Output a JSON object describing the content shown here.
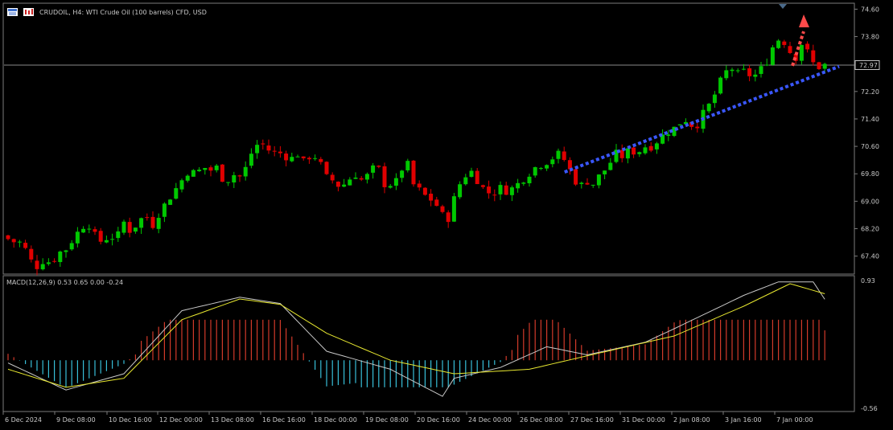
{
  "header": {
    "symbol": "CRUDOIL",
    "timeframe": "H4",
    "title_text": "CRUDOIL, H4:  WTI Crude Oil (100 barrels) CFD, USD"
  },
  "colors": {
    "background": "#000000",
    "bull": "#00c800",
    "bear": "#e00000",
    "grid_border": "#7c7c7c",
    "trendline": "#3a57ff",
    "arrow": "#ff4a4a",
    "macd_line": "#c8c8c8",
    "signal_line": "#e8e830",
    "hist_pos": "#d23a2a",
    "hist_neg": "#38bfd8"
  },
  "chart_data": [
    {
      "type": "candlestick",
      "ylim": [
        66.9,
        74.75
      ],
      "price_ticks": [
        "74.60",
        "73.80",
        "73.00",
        "72.20",
        "71.40",
        "70.60",
        "69.80",
        "69.00",
        "68.20",
        "67.40"
      ],
      "current_price": "72.97",
      "current_price_value": 72.97,
      "x_labels": [
        "6 Dec 2024",
        "9 Dec 08:00",
        "10 Dec 16:00",
        "12 Dec 00:00",
        "13 Dec 08:00",
        "16 Dec 16:00",
        "18 Dec 00:00",
        "19 Dec 08:00",
        "20 Dec 16:00",
        "24 Dec 00:00",
        "26 Dec 08:00",
        "27 Dec 16:00",
        "31 Dec 00:00",
        "2 Jan 08:00",
        "3 Jan 16:00",
        "7 Jan 00:00"
      ],
      "closes": [
        67.9,
        67.8,
        67.8,
        67.3,
        67.1,
        67.3,
        67.2,
        67.5,
        67.6,
        67.9,
        68.2,
        68.4,
        68.0,
        67.8,
        68.0,
        67.9,
        68.4,
        68.1,
        68.4,
        68.6,
        68.3,
        68.7,
        69.0,
        69.3,
        69.6,
        69.9,
        69.8,
        70.0,
        69.9,
        70.0,
        69.5,
        69.8,
        69.7,
        70.0,
        70.6,
        70.7,
        70.5,
        70.4,
        70.4,
        70.2,
        70.4,
        70.1,
        70.4,
        70.2,
        69.7,
        69.6,
        69.4,
        69.6,
        69.8,
        69.6,
        69.8,
        70.1,
        69.5,
        69.5,
        69.6,
        70.3,
        69.5,
        69.3,
        69.1,
        69.0,
        68.6,
        68.5,
        69.3,
        69.7,
        69.9,
        69.6,
        69.3,
        69.2,
        69.4,
        69.3,
        69.4,
        69.6,
        69.8,
        70.0,
        70.1,
        70.2,
        70.4,
        70.2,
        69.8,
        69.4,
        69.6,
        69.5,
        69.8,
        70.0,
        70.4,
        70.3,
        70.5,
        70.4,
        70.6,
        70.6,
        70.8,
        71.0,
        71.1,
        71.3,
        71.4,
        71.1,
        71.5,
        71.8,
        72.2,
        72.7,
        72.9,
        72.7,
        72.8,
        72.6,
        72.8,
        73.1,
        73.6,
        73.8,
        73.4,
        73.2,
        73.7,
        73.1,
        72.9,
        72.97
      ],
      "trendline": {
        "from": {
          "i": 77,
          "price": 69.85
        },
        "to": {
          "i": 113,
          "price": 72.93
        }
      },
      "annotation": "dotted red upward arrow"
    },
    {
      "type": "macd",
      "label": "MACD(12,26,9) 0.53 0.65 0.00 -0.24",
      "ylim": [
        -0.56,
        0.93
      ],
      "ticks": [
        "0.93",
        "-0.56"
      ],
      "macd_anchors": [
        [
          0,
          -0.03
        ],
        [
          10,
          -0.33
        ],
        [
          20,
          -0.15
        ],
        [
          30,
          0.55
        ],
        [
          40,
          0.7
        ],
        [
          47,
          0.63
        ],
        [
          55,
          0.1
        ],
        [
          66,
          -0.1
        ],
        [
          75,
          -0.4
        ],
        [
          77,
          -0.2
        ],
        [
          85,
          -0.08
        ],
        [
          93,
          0.15
        ],
        [
          100,
          0.06
        ],
        [
          110,
          0.2
        ],
        [
          115,
          0.35
        ],
        [
          127,
          0.72
        ],
        [
          133,
          0.87
        ],
        [
          139,
          0.87
        ],
        [
          142,
          0.58
        ]
      ],
      "signal_anchors": [
        [
          0,
          -0.1
        ],
        [
          10,
          -0.3
        ],
        [
          20,
          -0.2
        ],
        [
          30,
          0.45
        ],
        [
          40,
          0.68
        ],
        [
          47,
          0.62
        ],
        [
          55,
          0.3
        ],
        [
          66,
          0.0
        ],
        [
          77,
          -0.15
        ],
        [
          90,
          -0.1
        ],
        [
          100,
          0.05
        ],
        [
          115,
          0.27
        ],
        [
          127,
          0.6
        ],
        [
          135,
          0.85
        ],
        [
          142,
          0.72
        ]
      ]
    }
  ]
}
